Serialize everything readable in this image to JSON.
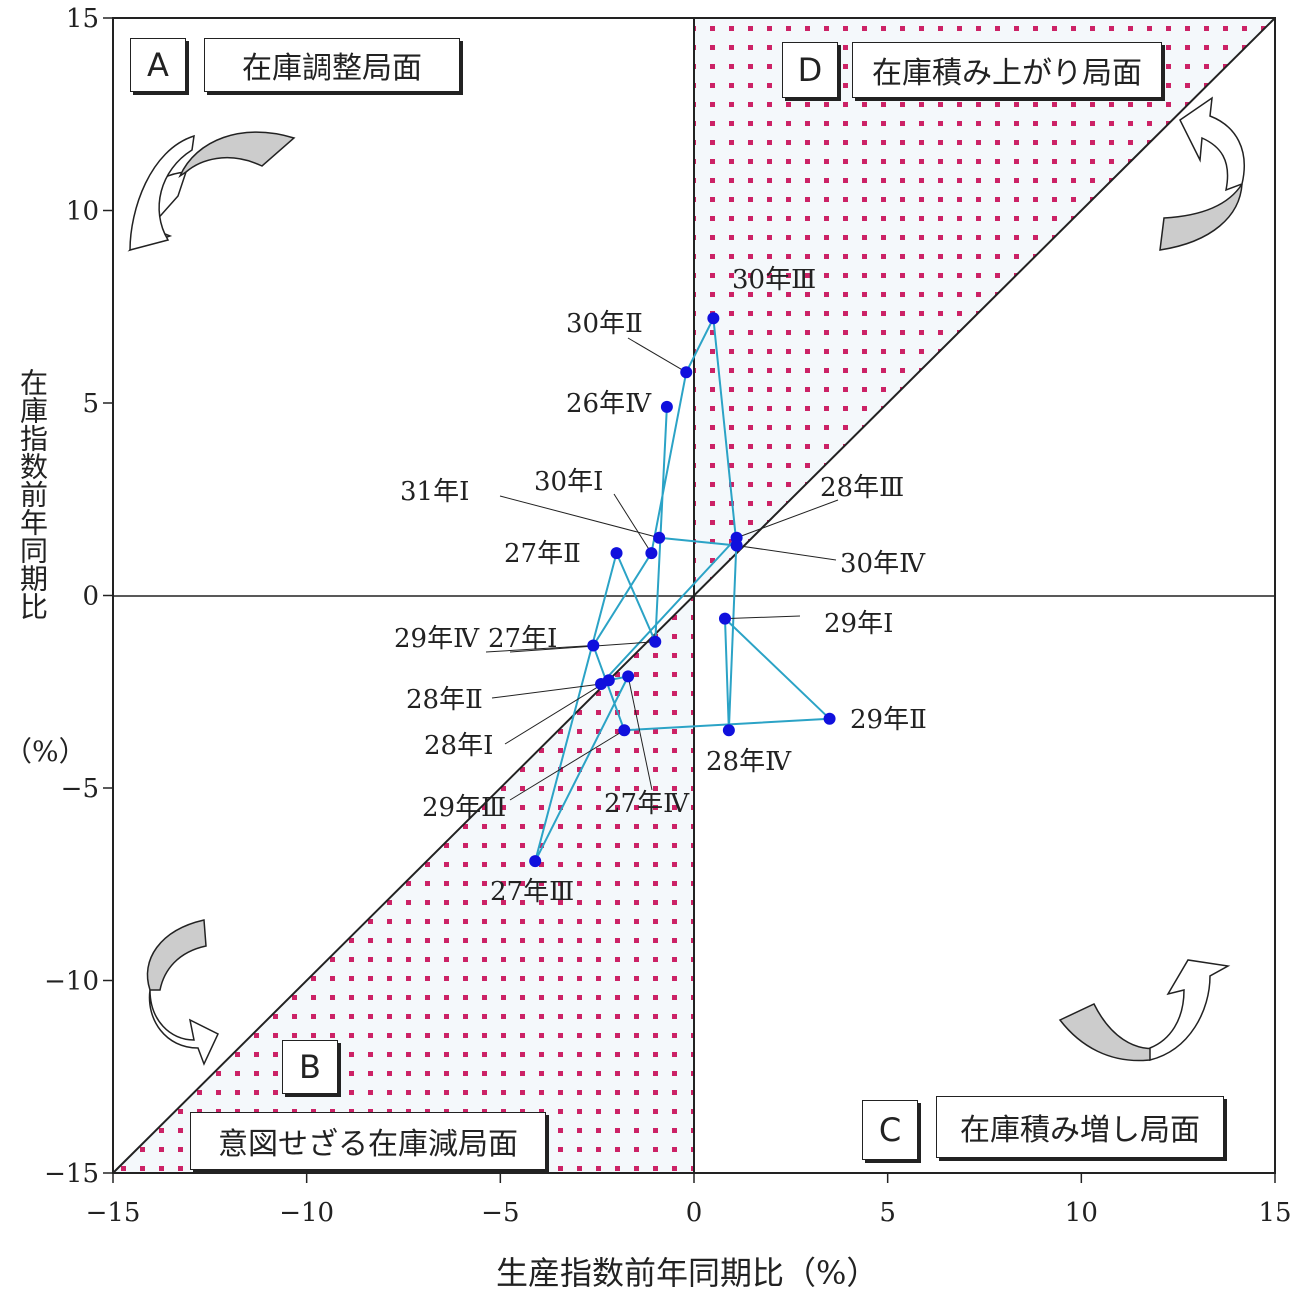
{
  "chart_data": {
    "type": "scatter",
    "title": "",
    "xlabel": "生産指数前年同期比（%）",
    "ylabel": "在庫指数前年同期比",
    "ylabel_unit": "（%）",
    "xlim": [
      -15,
      15
    ],
    "ylim": [
      -15,
      15
    ],
    "x_ticks": [
      -15,
      -10,
      -5,
      0,
      5,
      10,
      15
    ],
    "y_ticks": [
      -15,
      -10,
      -5,
      0,
      5,
      10,
      15
    ],
    "x_tick_labels": [
      "−15",
      "−10",
      "−5",
      "0",
      "5",
      "10",
      "15"
    ],
    "y_tick_labels": [
      "−15",
      "−10",
      "−5",
      "0",
      "5",
      "10",
      "15"
    ],
    "grid": false,
    "reference_lines": [
      "x=0",
      "y=0",
      "y=x"
    ],
    "shaded_regions": [
      "between y=x and x=0 (D: upper, B: lower)"
    ],
    "colors": {
      "point": "#1010dd",
      "line": "#2ba3c6",
      "shading": "#cc2266",
      "axis": "#222222"
    },
    "points": [
      {
        "label": "26年Ⅳ",
        "x": -0.7,
        "y": 4.9
      },
      {
        "label": "27年Ⅰ",
        "x": -1.0,
        "y": -1.2
      },
      {
        "label": "27年Ⅱ",
        "x": -2.0,
        "y": 1.1
      },
      {
        "label": "27年Ⅲ",
        "x": -4.1,
        "y": -6.9
      },
      {
        "label": "27年Ⅳ",
        "x": -1.7,
        "y": -2.1
      },
      {
        "label": "28年Ⅰ",
        "x": -2.2,
        "y": -2.2
      },
      {
        "label": "28年Ⅱ",
        "x": -2.4,
        "y": -2.3
      },
      {
        "label": "28年Ⅲ",
        "x": 1.1,
        "y": 1.5
      },
      {
        "label": "28年Ⅳ",
        "x": 0.9,
        "y": -3.5
      },
      {
        "label": "29年Ⅰ",
        "x": 0.8,
        "y": -0.6
      },
      {
        "label": "29年Ⅱ",
        "x": 3.5,
        "y": -3.2
      },
      {
        "label": "29年Ⅲ",
        "x": -1.8,
        "y": -3.5
      },
      {
        "label": "29年Ⅳ",
        "x": -2.6,
        "y": -1.3
      },
      {
        "label": "30年Ⅰ",
        "x": -1.1,
        "y": 1.1
      },
      {
        "label": "30年Ⅱ",
        "x": -0.2,
        "y": 5.8
      },
      {
        "label": "30年Ⅲ",
        "x": 0.5,
        "y": 7.2
      },
      {
        "label": "30年Ⅳ",
        "x": 1.1,
        "y": 1.3
      },
      {
        "label": "31年Ⅰ",
        "x": -0.9,
        "y": 1.5
      }
    ],
    "annotations": {
      "quadrants": [
        {
          "letter": "A",
          "phase": "在庫調整局面"
        },
        {
          "letter": "B",
          "phase": "意図せざる在庫減局面"
        },
        {
          "letter": "C",
          "phase": "在庫積み増し局面"
        },
        {
          "letter": "D",
          "phase": "在庫積み上がり局面"
        }
      ]
    }
  }
}
